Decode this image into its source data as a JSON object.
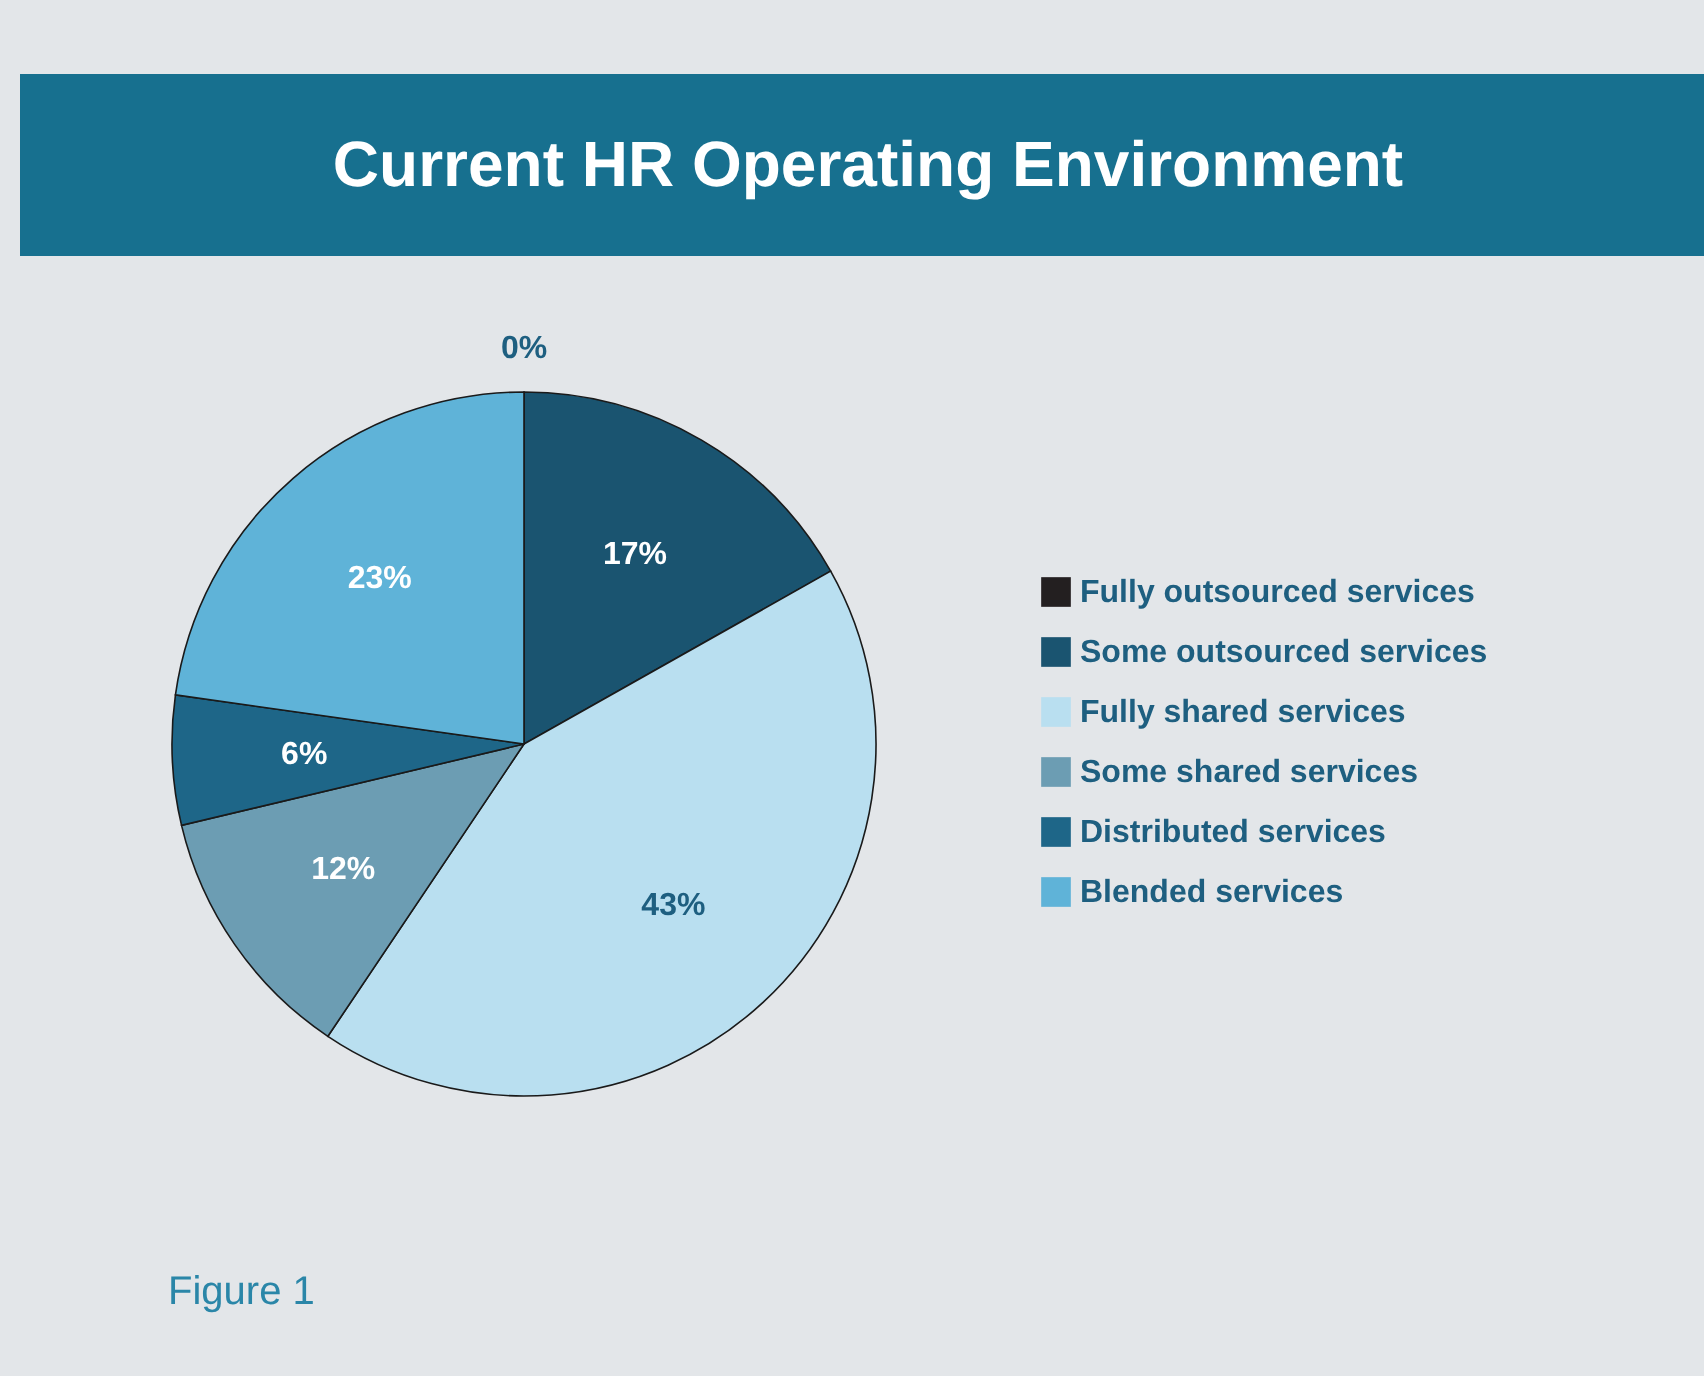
{
  "chart_data": {
    "type": "pie",
    "title": "Current HR Operating Environment",
    "categories": [
      "Fully outsourced services",
      "Some outsourced services",
      "Fully shared services",
      "Some shared services",
      "Distributed services",
      "Blended services"
    ],
    "values": [
      0,
      17,
      43,
      12,
      6,
      23
    ],
    "colors": [
      "#231f20",
      "#1a5470",
      "#b9dff0",
      "#6c9db3",
      "#1e6688",
      "#5fb3d8"
    ],
    "value_labels": [
      "0%",
      "17%",
      "43%",
      "12%",
      "6%",
      "23%"
    ],
    "legend": "right",
    "annotations": [
      "Figure 1"
    ]
  }
}
